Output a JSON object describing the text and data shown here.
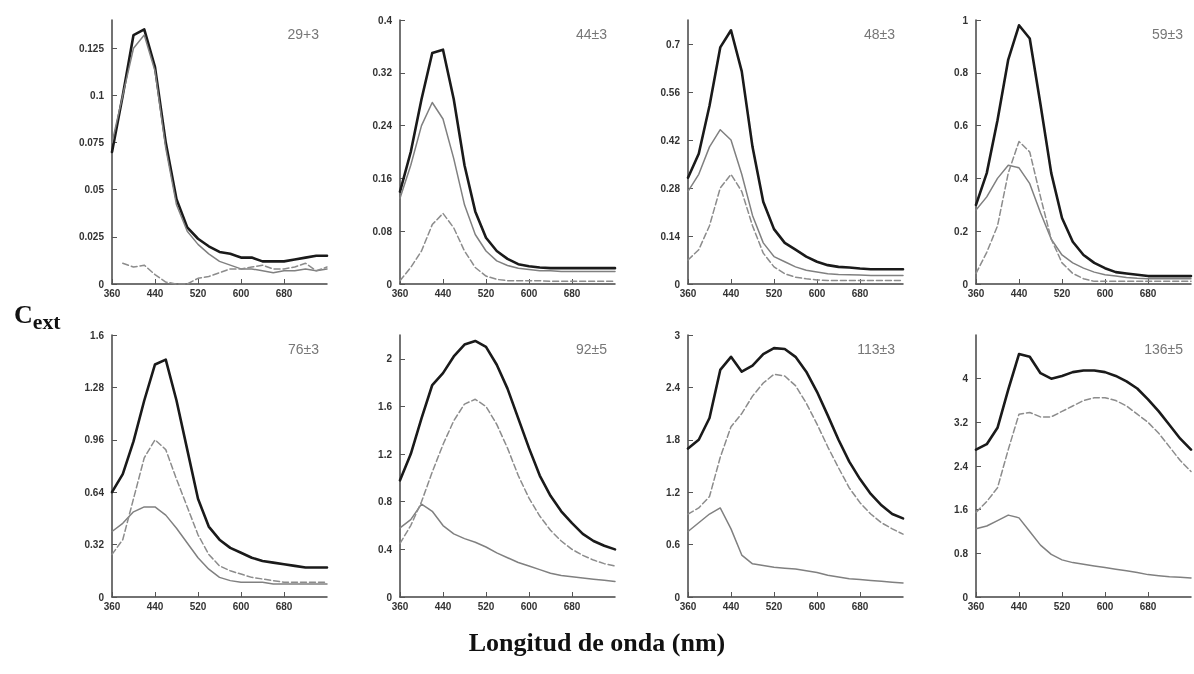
{
  "chart_data": [
    {
      "type": "line",
      "title": "29+3",
      "xlabel": "Longitud de onda (nm)",
      "ylabel": "C$_{ext}$",
      "x": [
        360,
        380,
        400,
        420,
        440,
        460,
        480,
        500,
        520,
        540,
        560,
        580,
        600,
        620,
        640,
        660,
        680,
        700,
        720,
        740,
        760
      ],
      "xlim": [
        360,
        760
      ],
      "xticks": [
        360,
        440,
        520,
        600,
        680
      ],
      "ylim": [
        0,
        0.14
      ],
      "yticks": [
        0,
        0.025,
        0.05,
        0.075,
        0.1,
        0.125
      ],
      "series": [
        {
          "color": "#1a1a1a",
          "line_style": "solid",
          "values": [
            0.07,
            0.1,
            0.132,
            0.135,
            0.115,
            0.075,
            0.045,
            0.03,
            0.024,
            0.02,
            0.017,
            0.016,
            0.014,
            0.014,
            0.012,
            0.012,
            0.012,
            0.013,
            0.014,
            0.015,
            0.015
          ]
        },
        {
          "color": "#808080",
          "line_style": "solid",
          "values": [
            0.075,
            0.1,
            0.125,
            0.132,
            0.113,
            0.072,
            0.042,
            0.028,
            0.021,
            0.016,
            0.012,
            0.01,
            0.008,
            0.008,
            0.007,
            0.006,
            0.007,
            0.007,
            0.008,
            0.007,
            0.008
          ]
        },
        {
          "color": "#8c8c8c",
          "line_style": "dashed",
          "values": [
            null,
            0.011,
            0.009,
            0.01,
            0.005,
            0.001,
            0,
            0,
            0.003,
            0.004,
            0.006,
            0.008,
            0.008,
            0.009,
            0.01,
            0.008,
            0.008,
            0.009,
            0.011,
            0.007,
            0.009
          ]
        }
      ]
    },
    {
      "type": "line",
      "title": "44±3",
      "x": [
        360,
        380,
        400,
        420,
        440,
        460,
        480,
        500,
        520,
        540,
        560,
        580,
        600,
        620,
        640,
        660,
        680,
        700,
        720,
        740,
        760
      ],
      "xlim": [
        360,
        760
      ],
      "xticks": [
        360,
        440,
        520,
        600,
        680
      ],
      "ylim": [
        0,
        0.4
      ],
      "yticks": [
        0,
        0.08,
        0.16,
        0.24,
        0.32,
        0.4
      ],
      "series": [
        {
          "color": "#1a1a1a",
          "line_style": "solid",
          "values": [
            0.14,
            0.2,
            0.28,
            0.35,
            0.355,
            0.28,
            0.18,
            0.11,
            0.07,
            0.05,
            0.038,
            0.03,
            0.027,
            0.025,
            0.024,
            0.024,
            0.024,
            0.024,
            0.024,
            0.024,
            0.024
          ]
        },
        {
          "color": "#808080",
          "line_style": "solid",
          "values": [
            0.13,
            0.18,
            0.24,
            0.275,
            0.25,
            0.19,
            0.12,
            0.075,
            0.05,
            0.035,
            0.028,
            0.024,
            0.022,
            0.02,
            0.02,
            0.019,
            0.019,
            0.019,
            0.019,
            0.019,
            0.019
          ]
        },
        {
          "color": "#8c8c8c",
          "line_style": "dashed",
          "values": [
            0.005,
            0.025,
            0.05,
            0.09,
            0.107,
            0.085,
            0.05,
            0.025,
            0.012,
            0.007,
            0.005,
            0.005,
            0.005,
            0.005,
            0.004,
            0.004,
            0.004,
            0.004,
            0.004,
            0.004,
            0.004
          ]
        }
      ]
    },
    {
      "type": "line",
      "title": "48±3",
      "x": [
        360,
        380,
        400,
        420,
        440,
        460,
        480,
        500,
        520,
        540,
        560,
        580,
        600,
        620,
        640,
        660,
        680,
        700,
        720,
        740,
        760
      ],
      "xlim": [
        360,
        760
      ],
      "xticks": [
        360,
        440,
        520,
        600,
        680
      ],
      "ylim": [
        0,
        0.77
      ],
      "yticks": [
        0,
        0.14,
        0.28,
        0.42,
        0.56,
        0.7
      ],
      "series": [
        {
          "color": "#1a1a1a",
          "line_style": "solid",
          "values": [
            0.31,
            0.38,
            0.52,
            0.69,
            0.74,
            0.62,
            0.4,
            0.24,
            0.16,
            0.12,
            0.1,
            0.08,
            0.065,
            0.055,
            0.05,
            0.048,
            0.045,
            0.043,
            0.043,
            0.043,
            0.043
          ]
        },
        {
          "color": "#808080",
          "line_style": "solid",
          "values": [
            0.27,
            0.32,
            0.4,
            0.45,
            0.42,
            0.32,
            0.2,
            0.12,
            0.08,
            0.065,
            0.05,
            0.04,
            0.035,
            0.03,
            0.028,
            0.027,
            0.026,
            0.025,
            0.025,
            0.025,
            0.025
          ]
        },
        {
          "color": "#8c8c8c",
          "line_style": "dashed",
          "values": [
            0.07,
            0.1,
            0.17,
            0.28,
            0.32,
            0.27,
            0.17,
            0.09,
            0.05,
            0.03,
            0.02,
            0.015,
            0.012,
            0.01,
            0.01,
            0.01,
            0.01,
            0.01,
            0.01,
            0.01,
            0.01
          ]
        }
      ]
    },
    {
      "type": "line",
      "title": "59±3",
      "x": [
        360,
        380,
        400,
        420,
        440,
        460,
        480,
        500,
        520,
        540,
        560,
        580,
        600,
        620,
        640,
        660,
        680,
        700,
        720,
        740,
        760
      ],
      "xlim": [
        360,
        760
      ],
      "xticks": [
        360,
        440,
        520,
        600,
        680
      ],
      "ylim": [
        0,
        1
      ],
      "yticks": [
        0,
        0.2,
        0.4,
        0.6,
        0.8,
        1
      ],
      "series": [
        {
          "color": "#1a1a1a",
          "line_style": "solid",
          "values": [
            0.3,
            0.42,
            0.62,
            0.85,
            0.98,
            0.93,
            0.68,
            0.42,
            0.25,
            0.16,
            0.11,
            0.08,
            0.06,
            0.045,
            0.04,
            0.035,
            0.03,
            0.03,
            0.03,
            0.03,
            0.03
          ]
        },
        {
          "color": "#808080",
          "line_style": "solid",
          "values": [
            0.28,
            0.33,
            0.4,
            0.45,
            0.44,
            0.38,
            0.27,
            0.17,
            0.11,
            0.08,
            0.06,
            0.045,
            0.035,
            0.03,
            0.025,
            0.022,
            0.02,
            0.02,
            0.02,
            0.02,
            0.02
          ]
        },
        {
          "color": "#8c8c8c",
          "line_style": "dashed",
          "values": [
            0.04,
            0.12,
            0.22,
            0.42,
            0.54,
            0.5,
            0.33,
            0.17,
            0.08,
            0.04,
            0.02,
            0.01,
            0.01,
            0.01,
            0.01,
            0.01,
            0.01,
            0.01,
            0.01,
            0.01,
            0.01
          ]
        }
      ]
    },
    {
      "type": "line",
      "title": "76±3",
      "x": [
        360,
        380,
        400,
        420,
        440,
        460,
        480,
        500,
        520,
        540,
        560,
        580,
        600,
        620,
        640,
        660,
        680,
        700,
        720,
        740,
        760
      ],
      "xlim": [
        360,
        760
      ],
      "xticks": [
        360,
        440,
        520,
        600,
        680
      ],
      "ylim": [
        0,
        1.6
      ],
      "yticks": [
        0,
        0.32,
        0.64,
        0.96,
        1.28,
        1.6
      ],
      "series": [
        {
          "color": "#1a1a1a",
          "line_style": "solid",
          "values": [
            0.64,
            0.75,
            0.95,
            1.2,
            1.42,
            1.45,
            1.2,
            0.9,
            0.6,
            0.43,
            0.35,
            0.3,
            0.27,
            0.24,
            0.22,
            0.21,
            0.2,
            0.19,
            0.18,
            0.18,
            0.18
          ]
        },
        {
          "color": "#808080",
          "line_style": "solid",
          "values": [
            0.4,
            0.45,
            0.52,
            0.55,
            0.55,
            0.5,
            0.42,
            0.33,
            0.24,
            0.17,
            0.12,
            0.1,
            0.09,
            0.09,
            0.09,
            0.08,
            0.08,
            0.08,
            0.08,
            0.08,
            0.08
          ]
        },
        {
          "color": "#8c8c8c",
          "line_style": "dashed",
          "values": [
            0.26,
            0.35,
            0.6,
            0.85,
            0.96,
            0.9,
            0.72,
            0.55,
            0.38,
            0.26,
            0.19,
            0.16,
            0.14,
            0.12,
            0.11,
            0.1,
            0.09,
            0.09,
            0.09,
            0.09,
            0.09
          ]
        }
      ]
    },
    {
      "type": "line",
      "title": "92±5",
      "x": [
        360,
        380,
        400,
        420,
        440,
        460,
        480,
        500,
        520,
        540,
        560,
        580,
        600,
        620,
        640,
        660,
        680,
        700,
        720,
        740,
        760
      ],
      "xlim": [
        360,
        760
      ],
      "xticks": [
        360,
        440,
        520,
        600,
        680
      ],
      "ylim": [
        0,
        2.2
      ],
      "yticks": [
        0,
        0.4,
        0.8,
        1.2,
        1.6,
        2
      ],
      "series": [
        {
          "color": "#1a1a1a",
          "line_style": "solid",
          "values": [
            0.98,
            1.2,
            1.5,
            1.78,
            1.88,
            2.02,
            2.12,
            2.15,
            2.1,
            1.95,
            1.75,
            1.5,
            1.25,
            1.02,
            0.85,
            0.72,
            0.62,
            0.53,
            0.47,
            0.43,
            0.4
          ]
        },
        {
          "color": "#808080",
          "line_style": "solid",
          "values": [
            0.58,
            0.65,
            0.78,
            0.72,
            0.6,
            0.53,
            0.49,
            0.46,
            0.42,
            0.37,
            0.33,
            0.29,
            0.26,
            0.23,
            0.2,
            0.18,
            0.17,
            0.16,
            0.15,
            0.14,
            0.13
          ]
        },
        {
          "color": "#8c8c8c",
          "line_style": "dashed",
          "values": [
            0.45,
            0.6,
            0.8,
            1.05,
            1.28,
            1.48,
            1.62,
            1.66,
            1.6,
            1.45,
            1.25,
            1.02,
            0.83,
            0.68,
            0.56,
            0.47,
            0.4,
            0.35,
            0.31,
            0.28,
            0.26
          ]
        }
      ]
    },
    {
      "type": "line",
      "title": "113±3",
      "x": [
        360,
        380,
        400,
        420,
        440,
        460,
        480,
        500,
        520,
        540,
        560,
        580,
        600,
        620,
        640,
        660,
        680,
        700,
        720,
        740,
        760
      ],
      "xlim": [
        360,
        760
      ],
      "xticks": [
        360,
        440,
        520,
        600,
        680
      ],
      "ylim": [
        0,
        3
      ],
      "yticks": [
        0,
        0.6,
        1.2,
        1.8,
        2.4,
        3
      ],
      "series": [
        {
          "color": "#1a1a1a",
          "line_style": "solid",
          "values": [
            1.7,
            1.8,
            2.05,
            2.6,
            2.75,
            2.58,
            2.65,
            2.78,
            2.85,
            2.84,
            2.75,
            2.58,
            2.35,
            2.08,
            1.8,
            1.55,
            1.35,
            1.18,
            1.05,
            0.95,
            0.9
          ]
        },
        {
          "color": "#808080",
          "line_style": "solid",
          "values": [
            0.75,
            0.85,
            0.95,
            1.02,
            0.78,
            0.48,
            0.38,
            0.36,
            0.34,
            0.33,
            0.32,
            0.3,
            0.28,
            0.25,
            0.23,
            0.21,
            0.2,
            0.19,
            0.18,
            0.17,
            0.16
          ]
        },
        {
          "color": "#8c8c8c",
          "line_style": "dashed",
          "values": [
            0.95,
            1.02,
            1.15,
            1.6,
            1.95,
            2.1,
            2.3,
            2.45,
            2.55,
            2.53,
            2.42,
            2.22,
            1.98,
            1.72,
            1.48,
            1.25,
            1.08,
            0.95,
            0.85,
            0.78,
            0.72
          ]
        }
      ]
    },
    {
      "type": "line",
      "title": "136±5",
      "x": [
        360,
        380,
        400,
        420,
        440,
        460,
        480,
        500,
        520,
        540,
        560,
        580,
        600,
        620,
        640,
        660,
        680,
        700,
        720,
        740,
        760
      ],
      "xlim": [
        360,
        760
      ],
      "xticks": [
        360,
        440,
        520,
        600,
        680
      ],
      "ylim": [
        0,
        4.8
      ],
      "yticks": [
        0,
        0.8,
        1.6,
        2.4,
        3.2,
        4
      ],
      "series": [
        {
          "color": "#1a1a1a",
          "line_style": "solid",
          "values": [
            2.7,
            2.8,
            3.1,
            3.8,
            4.45,
            4.4,
            4.1,
            4.0,
            4.05,
            4.12,
            4.15,
            4.15,
            4.12,
            4.05,
            3.95,
            3.82,
            3.62,
            3.4,
            3.15,
            2.9,
            2.7
          ]
        },
        {
          "color": "#808080",
          "line_style": "solid",
          "values": [
            1.25,
            1.3,
            1.4,
            1.5,
            1.45,
            1.2,
            0.95,
            0.78,
            0.68,
            0.63,
            0.6,
            0.57,
            0.54,
            0.51,
            0.48,
            0.45,
            0.41,
            0.39,
            0.37,
            0.36,
            0.35
          ]
        },
        {
          "color": "#8c8c8c",
          "line_style": "dashed",
          "values": [
            1.55,
            1.75,
            2.0,
            2.7,
            3.35,
            3.38,
            3.3,
            3.3,
            3.4,
            3.5,
            3.6,
            3.65,
            3.65,
            3.6,
            3.5,
            3.35,
            3.2,
            3.0,
            2.75,
            2.5,
            2.3
          ]
        }
      ]
    }
  ]
}
